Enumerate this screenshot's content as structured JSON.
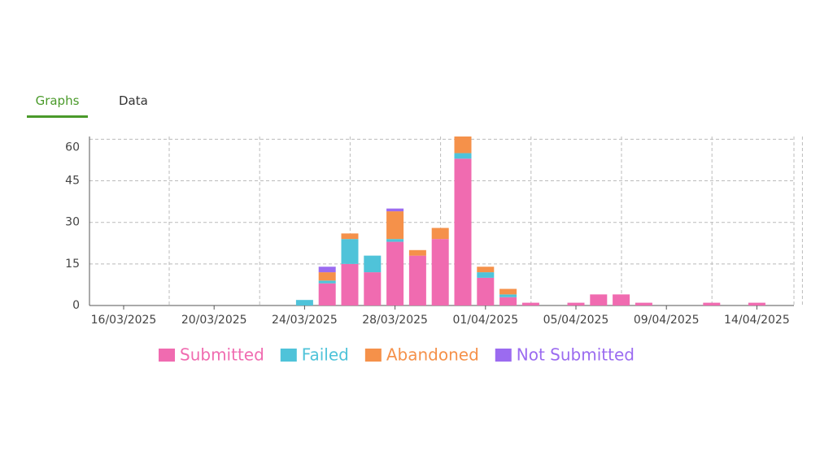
{
  "tabs": [
    "Graphs",
    "Data"
  ],
  "chart_data": {
    "type": "bar",
    "stacked": true,
    "categories": [
      "16/03/2025",
      null,
      null,
      null,
      "20/03/2025",
      null,
      null,
      null,
      "24/03/2025",
      null,
      null,
      null,
      "28/03/2025",
      null,
      null,
      null,
      "01/04/2025",
      null,
      null,
      null,
      "05/04/2025",
      null,
      null,
      null,
      "09/04/2025",
      null,
      null,
      null,
      "14/04/2025",
      null
    ],
    "series": [
      {
        "name": "Submitted",
        "color": "#f06bb0",
        "values": [
          0,
          0,
          0,
          0,
          0,
          0,
          0,
          0,
          0,
          8,
          15,
          12,
          23,
          18,
          24,
          53,
          10,
          3,
          1,
          0,
          1,
          4,
          4,
          1,
          0,
          0,
          1,
          0,
          1,
          0
        ]
      },
      {
        "name": "Failed",
        "color": "#4fc3d9",
        "values": [
          0,
          0,
          0,
          0,
          0,
          0,
          0,
          0,
          2,
          1,
          9,
          6,
          1,
          0,
          0,
          2,
          2,
          1,
          0,
          0,
          0,
          0,
          0,
          0,
          0,
          0,
          0,
          0,
          0,
          0
        ]
      },
      {
        "name": "Abandoned",
        "color": "#f5914a",
        "values": [
          0,
          0,
          0,
          0,
          0,
          0,
          0,
          0,
          0,
          3,
          2,
          0,
          10,
          2,
          4,
          6,
          2,
          2,
          0,
          0,
          0,
          0,
          0,
          0,
          0,
          0,
          0,
          0,
          0,
          0
        ]
      },
      {
        "name": "Not Submitted",
        "color": "#9b6bf0",
        "values": [
          0,
          0,
          0,
          0,
          0,
          0,
          0,
          0,
          0,
          2,
          0,
          0,
          1,
          0,
          0,
          0,
          0,
          0,
          0,
          0,
          0,
          0,
          0,
          0,
          0,
          0,
          0,
          0,
          0,
          0
        ]
      }
    ],
    "ylim": [
      0,
      61
    ],
    "yticks": [
      0,
      15,
      30,
      45,
      60
    ],
    "grid": true
  }
}
